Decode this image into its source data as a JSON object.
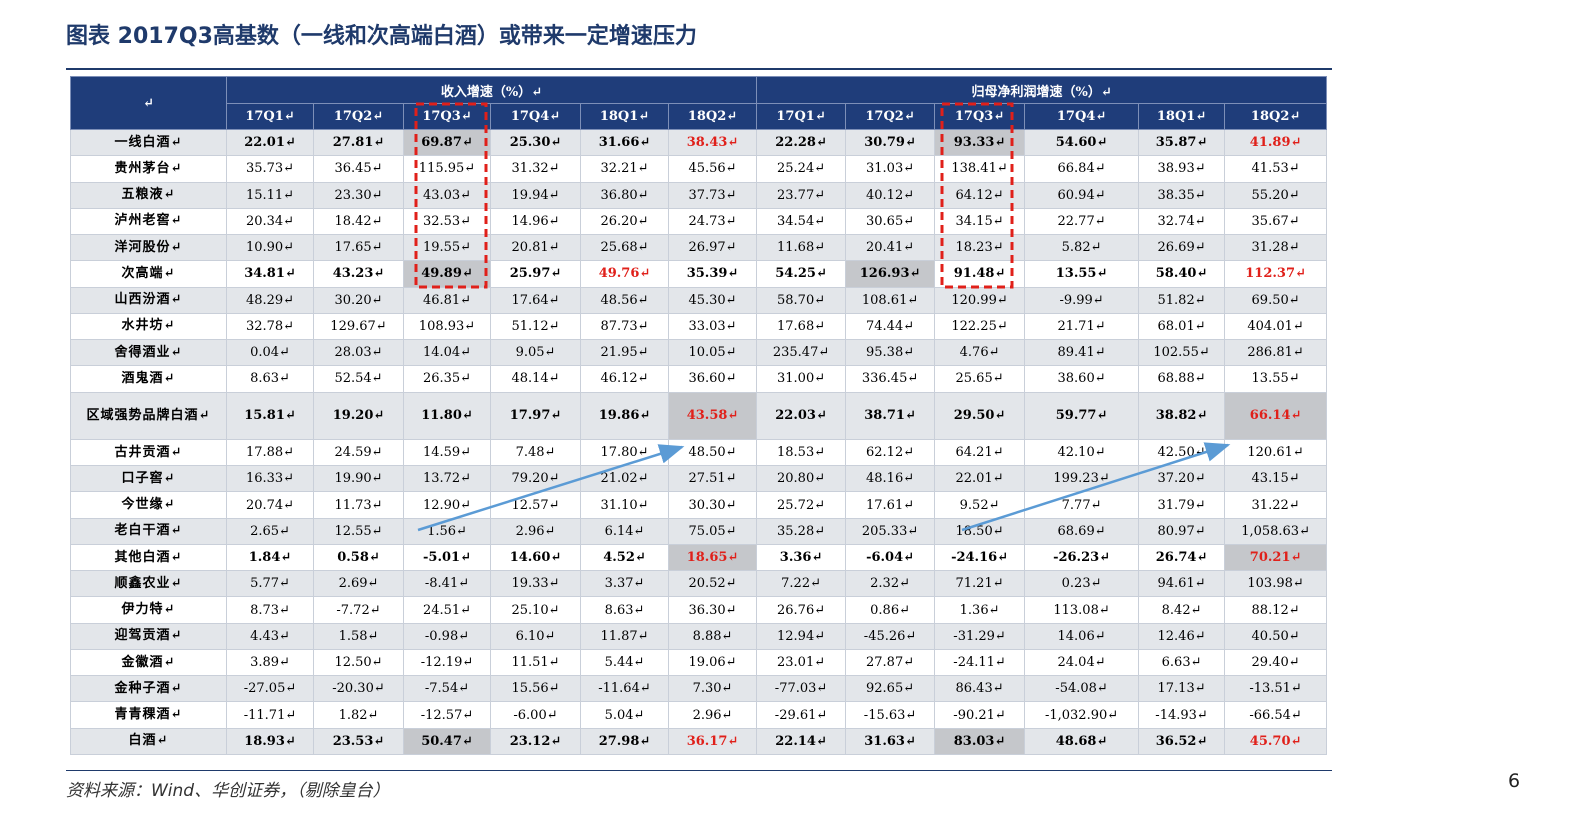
{
  "title": "图表  2017Q3高基数（一线和次高端白酒）或带来一定增速压力",
  "source": "资料来源：Wind、华创证券，（剔除皇台）",
  "page_number": "6",
  "colors": {
    "header_bg": "#1f3d7a",
    "highlight_red": "#e0201a",
    "gray_cell": "#c5c7cb",
    "dashed_box": "#e0201a",
    "arrow": "#5b9bd5"
  },
  "table": {
    "corner": "↵",
    "group_headers": [
      "收入增速（%）↵",
      "归母净利润增速（%）↵"
    ],
    "quarters": [
      "17Q1↵",
      "17Q2↵",
      "17Q3↵",
      "17Q4↵",
      "18Q1↵",
      "18Q2↵",
      "17Q1↵",
      "17Q2↵",
      "17Q3↵",
      "17Q4↵",
      "18Q1↵",
      "18Q2↵"
    ],
    "rows": [
      {
        "name": "一线白酒↵",
        "values": [
          "22.01↵",
          "27.81↵",
          "69.87↵",
          "25.30↵",
          "31.66↵",
          "38.43↵",
          "22.28↵",
          "30.79↵",
          "93.33↵",
          "54.60↵",
          "35.87↵",
          "41.89↵"
        ]
      },
      {
        "name": "贵州茅台↵",
        "values": [
          "35.73↵",
          "36.45↵",
          "115.95↵",
          "31.32↵",
          "32.21↵",
          "45.56↵",
          "25.24↵",
          "31.03↵",
          "138.41↵",
          "66.84↵",
          "38.93↵",
          "41.53↵"
        ]
      },
      {
        "name": "五粮液↵",
        "values": [
          "15.11↵",
          "23.30↵",
          "43.03↵",
          "19.94↵",
          "36.80↵",
          "37.73↵",
          "23.77↵",
          "40.12↵",
          "64.12↵",
          "60.94↵",
          "38.35↵",
          "55.20↵"
        ]
      },
      {
        "name": "泸州老窖↵",
        "values": [
          "20.34↵",
          "18.42↵",
          "32.53↵",
          "14.96↵",
          "26.20↵",
          "24.73↵",
          "34.54↵",
          "30.65↵",
          "34.15↵",
          "22.77↵",
          "32.74↵",
          "35.67↵"
        ]
      },
      {
        "name": "洋河股份↵",
        "values": [
          "10.90↵",
          "17.65↵",
          "19.55↵",
          "20.81↵",
          "25.68↵",
          "26.97↵",
          "11.68↵",
          "20.41↵",
          "18.23↵",
          "5.82↵",
          "26.69↵",
          "31.28↵"
        ]
      },
      {
        "name": "次高端↵",
        "values": [
          "34.81↵",
          "43.23↵",
          "49.89↵",
          "25.97↵",
          "49.76↵",
          "35.39↵",
          "54.25↵",
          "126.93↵",
          "91.48↵",
          "13.55↵",
          "58.40↵",
          "112.37↵"
        ]
      },
      {
        "name": "山西汾酒↵",
        "values": [
          "48.29↵",
          "30.20↵",
          "46.81↵",
          "17.64↵",
          "48.56↵",
          "45.30↵",
          "58.70↵",
          "108.61↵",
          "120.99↵",
          "-9.99↵",
          "51.82↵",
          "69.50↵"
        ]
      },
      {
        "name": "水井坊↵",
        "values": [
          "32.78↵",
          "129.67↵",
          "108.93↵",
          "51.12↵",
          "87.73↵",
          "33.03↵",
          "17.68↵",
          "74.44↵",
          "122.25↵",
          "21.71↵",
          "68.01↵",
          "404.01↵"
        ]
      },
      {
        "name": "舍得酒业↵",
        "values": [
          "0.04↵",
          "28.03↵",
          "14.04↵",
          "9.05↵",
          "21.95↵",
          "10.05↵",
          "235.47↵",
          "95.38↵",
          "4.76↵",
          "89.41↵",
          "102.55↵",
          "286.81↵"
        ]
      },
      {
        "name": "酒鬼酒↵",
        "values": [
          "8.63↵",
          "52.54↵",
          "26.35↵",
          "48.14↵",
          "46.12↵",
          "36.60↵",
          "31.00↵",
          "336.45↵",
          "25.65↵",
          "38.60↵",
          "68.88↵",
          "13.55↵"
        ]
      },
      {
        "name": "区域强势品牌白酒↵",
        "values": [
          "15.81↵",
          "19.20↵",
          "11.80↵",
          "17.97↵",
          "19.86↵",
          "43.58↵",
          "22.03↵",
          "38.71↵",
          "29.50↵",
          "59.77↵",
          "38.82↵",
          "66.14↵"
        ]
      },
      {
        "name": "古井贡酒↵",
        "values": [
          "17.88↵",
          "24.59↵",
          "14.59↵",
          "7.48↵",
          "17.80↵",
          "48.50↵",
          "18.53↵",
          "62.12↵",
          "64.21↵",
          "42.10↵",
          "42.50↵",
          "120.61↵"
        ]
      },
      {
        "name": "口子窖↵",
        "values": [
          "16.33↵",
          "19.90↵",
          "13.72↵",
          "79.20↵",
          "21.02↵",
          "27.51↵",
          "20.80↵",
          "48.16↵",
          "22.01↵",
          "199.23↵",
          "37.20↵",
          "43.15↵"
        ]
      },
      {
        "name": "今世缘↵",
        "values": [
          "20.74↵",
          "11.73↵",
          "12.90↵",
          "12.57↵",
          "31.10↵",
          "30.30↵",
          "25.72↵",
          "17.61↵",
          "9.52↵",
          "7.77↵",
          "31.79↵",
          "31.22↵"
        ]
      },
      {
        "name": "老白干酒↵",
        "values": [
          "2.65↵",
          "12.55↵",
          "1.56↵",
          "2.96↵",
          "6.14↵",
          "75.05↵",
          "35.28↵",
          "205.33↵",
          "18.50↵",
          "68.69↵",
          "80.97↵",
          "1,058.63↵"
        ]
      },
      {
        "name": "其他白酒↵",
        "values": [
          "1.84↵",
          "0.58↵",
          "-5.01↵",
          "14.60↵",
          "4.52↵",
          "18.65↵",
          "3.36↵",
          "-6.04↵",
          "-24.16↵",
          "-26.23↵",
          "26.74↵",
          "70.21↵"
        ]
      },
      {
        "name": "顺鑫农业↵",
        "values": [
          "5.77↵",
          "2.69↵",
          "-8.41↵",
          "19.33↵",
          "3.37↵",
          "20.52↵",
          "7.22↵",
          "2.32↵",
          "71.21↵",
          "0.23↵",
          "94.61↵",
          "103.98↵"
        ]
      },
      {
        "name": "伊力特↵",
        "values": [
          "8.73↵",
          "-7.72↵",
          "24.51↵",
          "25.10↵",
          "8.63↵",
          "36.30↵",
          "26.76↵",
          "0.86↵",
          "1.36↵",
          "113.08↵",
          "8.42↵",
          "88.12↵"
        ]
      },
      {
        "name": "迎驾贡酒↵",
        "values": [
          "4.43↵",
          "1.58↵",
          "-0.98↵",
          "6.10↵",
          "11.87↵",
          "8.88↵",
          "12.94↵",
          "-45.26↵",
          "-31.29↵",
          "14.06↵",
          "12.46↵",
          "40.50↵"
        ]
      },
      {
        "name": "金徽酒↵",
        "values": [
          "3.89↵",
          "12.50↵",
          "-12.19↵",
          "11.51↵",
          "5.44↵",
          "19.06↵",
          "23.01↵",
          "27.87↵",
          "-24.11↵",
          "24.04↵",
          "6.63↵",
          "29.40↵"
        ]
      },
      {
        "name": "金种子酒↵",
        "values": [
          "-27.05↵",
          "-20.30↵",
          "-7.54↵",
          "15.56↵",
          "-11.64↵",
          "7.30↵",
          "-77.03↵",
          "92.65↵",
          "86.43↵",
          "-54.08↵",
          "17.13↵",
          "-13.51↵"
        ]
      },
      {
        "name": "青青稞酒↵",
        "values": [
          "-11.71↵",
          "1.82↵",
          "-12.57↵",
          "-6.00↵",
          "5.04↵",
          "2.96↵",
          "-29.61↵",
          "-15.63↵",
          "-90.21↵",
          "-1,032.90↵",
          "-14.93↵",
          "-66.54↵"
        ]
      },
      {
        "name": "白酒↵",
        "values": [
          "18.93↵",
          "23.53↵",
          "50.47↵",
          "23.12↵",
          "27.98↵",
          "36.17↵",
          "22.14↵",
          "31.63↵",
          "83.03↵",
          "48.68↵",
          "36.52↵",
          "45.70↵"
        ]
      }
    ]
  }
}
